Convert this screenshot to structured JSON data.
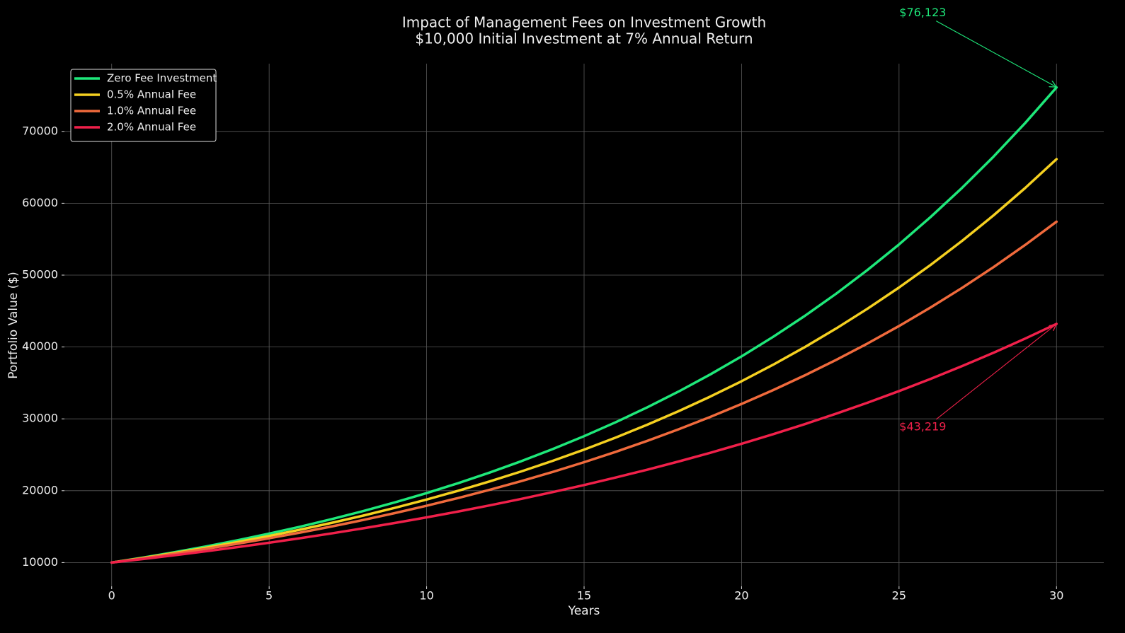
{
  "chart_data": {
    "type": "line",
    "title": "Impact of Management Fees on Investment Growth",
    "subtitle": "$10,000 Initial Investment at 7% Annual Return",
    "x_label": "Years",
    "y_label": "Portfolio Value ($)",
    "x": [
      0,
      1,
      2,
      3,
      4,
      5,
      6,
      7,
      8,
      9,
      10,
      11,
      12,
      13,
      14,
      15,
      16,
      17,
      18,
      19,
      20,
      21,
      22,
      23,
      24,
      25,
      26,
      27,
      28,
      29,
      30
    ],
    "series": [
      {
        "name": "Zero Fee Investment",
        "color": "#1ee87a",
        "values": [
          10000,
          10700,
          11449,
          12250,
          13108,
          14026,
          15007,
          16058,
          17182,
          18385,
          19672,
          21049,
          22522,
          24098,
          25785,
          27590,
          29522,
          31588,
          33799,
          36165,
          38697,
          41406,
          44304,
          47405,
          50724,
          54274,
          58074,
          62139,
          66488,
          71143,
          76123
        ]
      },
      {
        "name": "0.5% Annual Fee",
        "color": "#f5d020",
        "values": [
          10000,
          10650,
          11342,
          12079,
          12865,
          13701,
          14591,
          15540,
          16550,
          17626,
          18771,
          19992,
          21291,
          22675,
          24149,
          25718,
          27390,
          29170,
          31067,
          33086,
          35236,
          37527,
          39966,
          42564,
          45331,
          48277,
          51415,
          54757,
          58316,
          62107,
          66144
        ]
      },
      {
        "name": "1.0% Annual Fee",
        "color": "#f06a3c",
        "values": [
          10000,
          10600,
          11236,
          11910,
          12625,
          13382,
          14185,
          15036,
          15938,
          16895,
          17908,
          18983,
          20122,
          21329,
          22609,
          23966,
          25404,
          26928,
          28543,
          30256,
          32071,
          33996,
          36035,
          38197,
          40489,
          42919,
          45494,
          48223,
          51117,
          54184,
          57435
        ]
      },
      {
        "name": "2.0% Annual Fee",
        "color": "#f0204a",
        "values": [
          10000,
          10500,
          11025,
          11576,
          12155,
          12763,
          13401,
          14071,
          14775,
          15513,
          16289,
          17103,
          17959,
          18856,
          19799,
          20789,
          21829,
          22920,
          24066,
          25270,
          26533,
          27860,
          29253,
          30715,
          32251,
          33864,
          35557,
          37335,
          39201,
          41161,
          43219
        ]
      }
    ],
    "annotations": [
      {
        "text": "$76,123",
        "x": 30,
        "y": 76123,
        "color": "#1ee87a"
      },
      {
        "text": "$43,219",
        "x": 30,
        "y": 43219,
        "color": "#f0204a"
      }
    ],
    "xlim": [
      -1.5,
      31.5
    ],
    "xticks": [
      0,
      5,
      10,
      15,
      20,
      25,
      30
    ],
    "ylim": [
      6694,
      79429
    ],
    "yticks": [
      10000,
      20000,
      30000,
      40000,
      50000,
      60000,
      70000
    ],
    "grid": true,
    "legend": "upper left"
  }
}
